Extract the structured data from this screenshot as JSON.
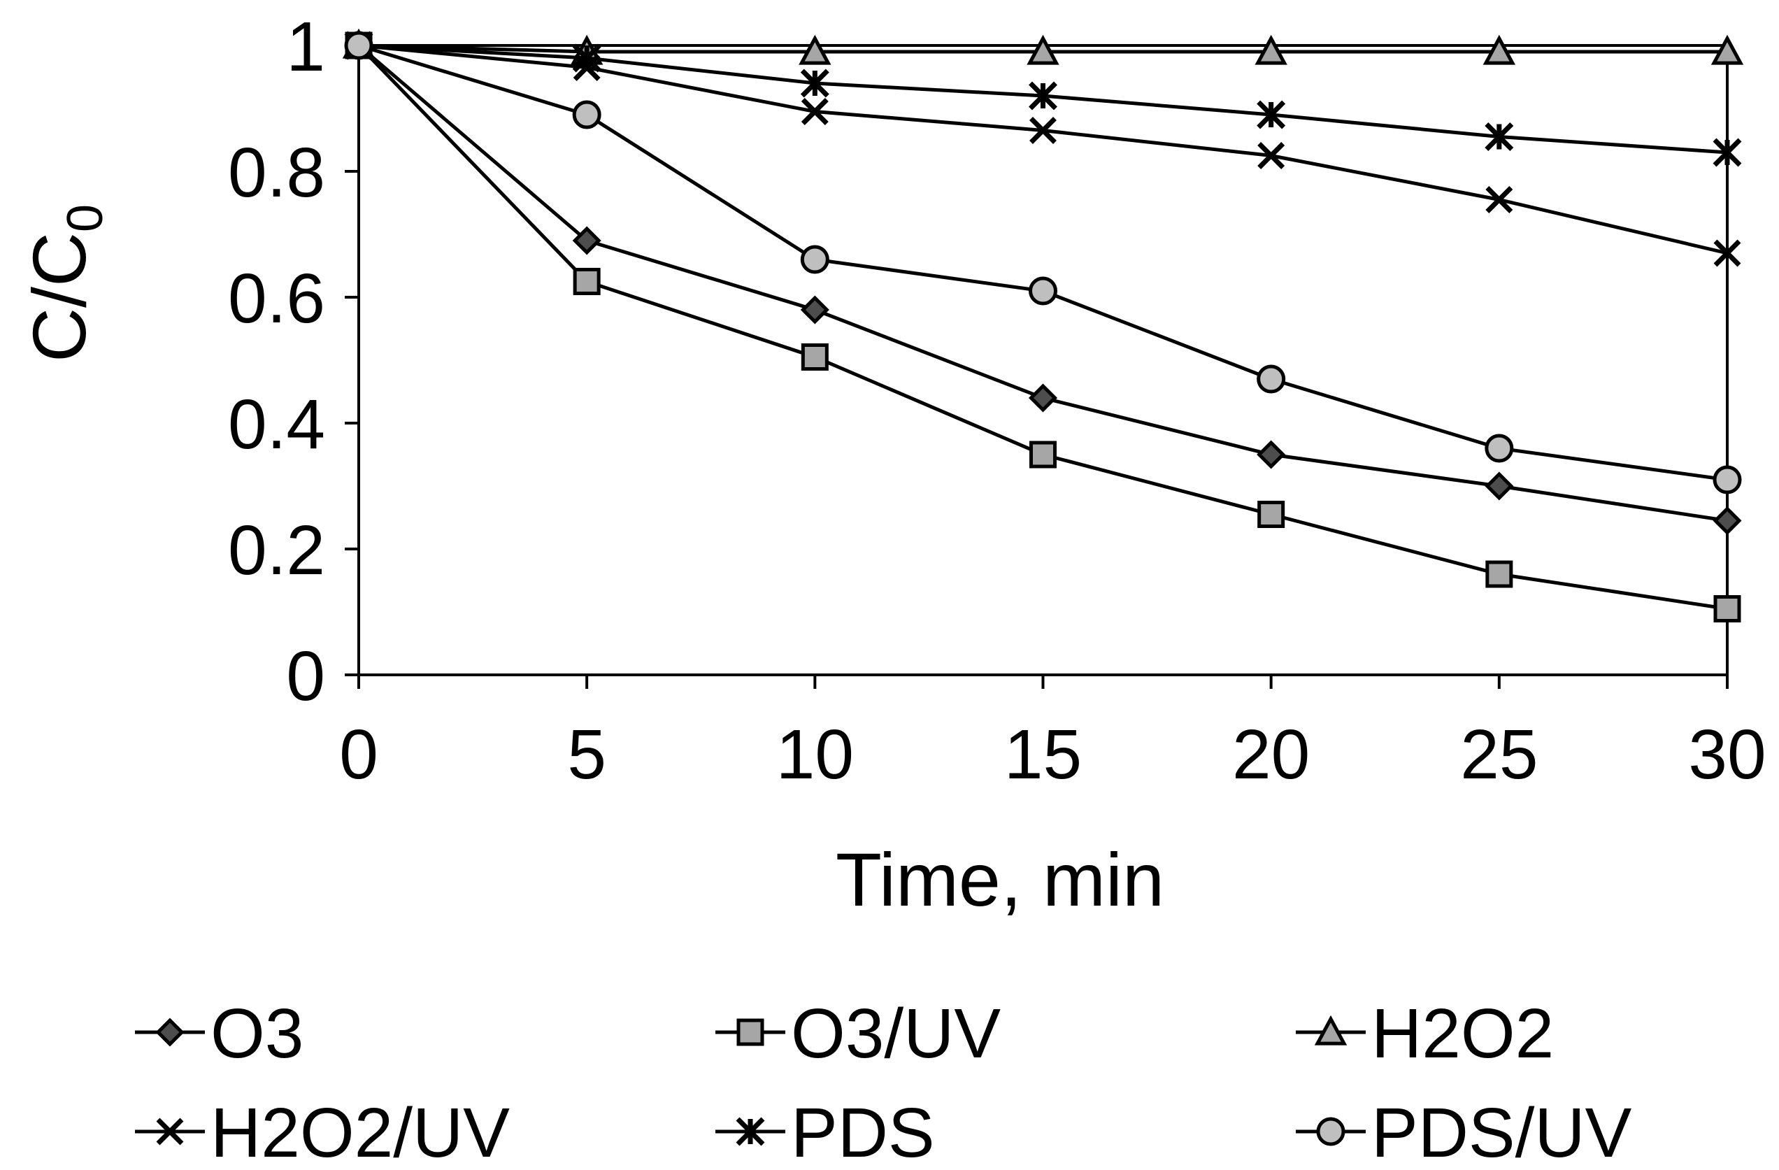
{
  "chart_data": {
    "type": "line",
    "title": "",
    "xlabel": "Time, min",
    "ylabel_main": "C/C",
    "ylabel_sub": "0",
    "x": [
      0,
      5,
      10,
      15,
      20,
      25,
      30
    ],
    "xlim": [
      0,
      30
    ],
    "ylim": [
      0,
      1
    ],
    "xticks": [
      "0",
      "5",
      "10",
      "15",
      "20",
      "25",
      "30"
    ],
    "yticks": [
      "0",
      "0.2",
      "0.4",
      "0.6",
      "0.8",
      "1"
    ],
    "grid": false,
    "legend_position": "bottom",
    "series": [
      {
        "name": "O3",
        "marker": "diamond",
        "fill": "#4d4d4d",
        "values": [
          1.0,
          0.69,
          0.58,
          0.44,
          0.35,
          0.3,
          0.245
        ]
      },
      {
        "name": "O3/UV",
        "marker": "square",
        "fill": "#a6a6a6",
        "values": [
          1.0,
          0.625,
          0.505,
          0.35,
          0.255,
          0.16,
          0.105
        ]
      },
      {
        "name": "H2O2",
        "marker": "triangle",
        "fill": "#a6a6a6",
        "values": [
          1.0,
          0.99,
          0.99,
          0.99,
          0.99,
          0.99,
          0.99
        ]
      },
      {
        "name": "H2O2/UV",
        "marker": "x",
        "fill": "#000000",
        "values": [
          1.0,
          0.965,
          0.895,
          0.865,
          0.825,
          0.755,
          0.67
        ]
      },
      {
        "name": "PDS",
        "marker": "star",
        "fill": "#000000",
        "values": [
          1.0,
          0.98,
          0.94,
          0.92,
          0.89,
          0.855,
          0.83
        ]
      },
      {
        "name": "PDS/UV",
        "marker": "circle",
        "fill": "#bfbfbf",
        "values": [
          1.0,
          0.89,
          0.66,
          0.61,
          0.47,
          0.36,
          0.31
        ]
      }
    ]
  }
}
